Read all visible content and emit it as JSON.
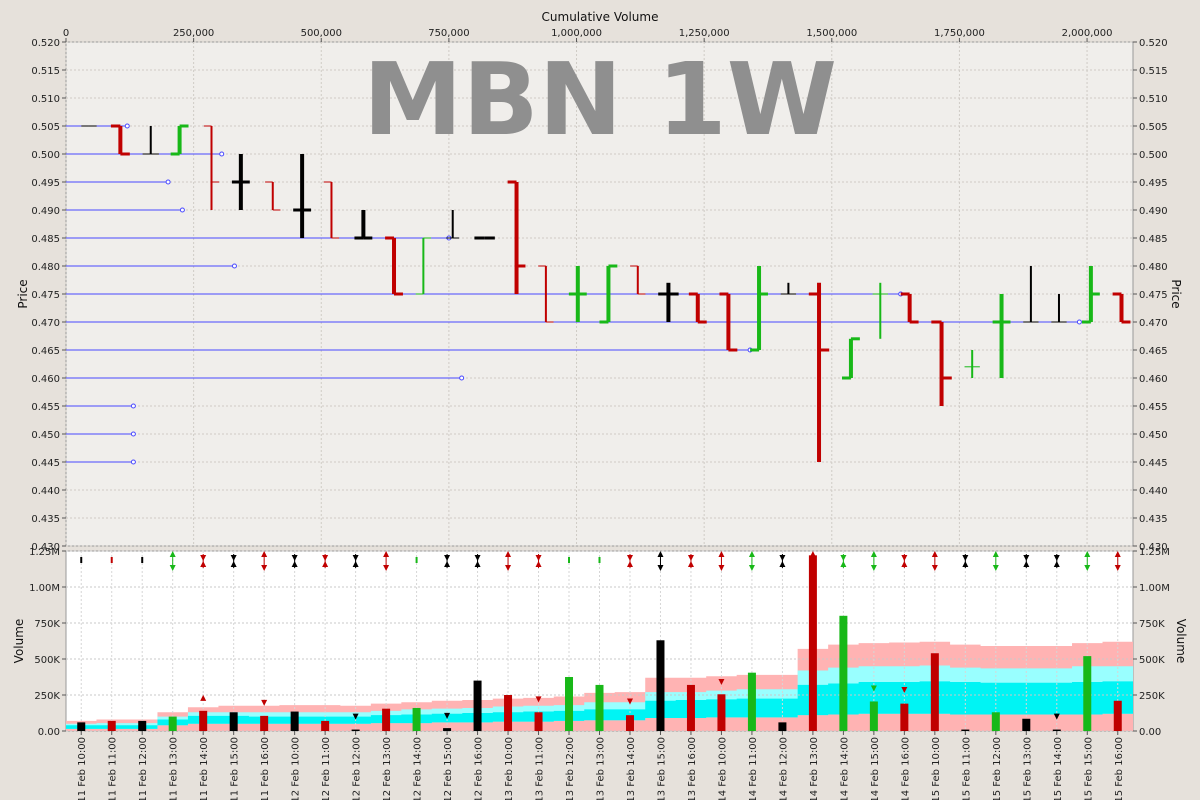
{
  "chart_data": [
    {
      "type": "ohlc",
      "watermark": "MBN 1W",
      "xlabel": "Cumulative Volume",
      "ylabel": "Price",
      "xlim": [
        0,
        2090000
      ],
      "ylim": [
        0.43,
        0.52
      ],
      "x_ticks": [
        {
          "v": 0,
          "label": "0"
        },
        {
          "v": 250000,
          "label": "250,000"
        },
        {
          "v": 500000,
          "label": "500,000"
        },
        {
          "v": 750000,
          "label": "750,000"
        },
        {
          "v": 1000000,
          "label": "1,000,000"
        },
        {
          "v": 1250000,
          "label": "1,250,000"
        },
        {
          "v": 1500000,
          "label": "1,500,000"
        },
        {
          "v": 1750000,
          "label": "1,750,000"
        },
        {
          "v": 2000000,
          "label": "2,000,000"
        }
      ],
      "y_ticks": [
        {
          "v": 0.52,
          "label": "0.520"
        },
        {
          "v": 0.515,
          "label": "0.515"
        },
        {
          "v": 0.51,
          "label": "0.510"
        },
        {
          "v": 0.505,
          "label": "0.505"
        },
        {
          "v": 0.5,
          "label": "0.500"
        },
        {
          "v": 0.495,
          "label": "0.495"
        },
        {
          "v": 0.49,
          "label": "0.490"
        },
        {
          "v": 0.485,
          "label": "0.485"
        },
        {
          "v": 0.48,
          "label": "0.480"
        },
        {
          "v": 0.475,
          "label": "0.475"
        },
        {
          "v": 0.47,
          "label": "0.470"
        },
        {
          "v": 0.465,
          "label": "0.465"
        },
        {
          "v": 0.46,
          "label": "0.460"
        },
        {
          "v": 0.455,
          "label": "0.455"
        },
        {
          "v": 0.45,
          "label": "0.450"
        },
        {
          "v": 0.445,
          "label": "0.445"
        },
        {
          "v": 0.44,
          "label": "0.440"
        },
        {
          "v": 0.435,
          "label": "0.435"
        },
        {
          "v": 0.43,
          "label": "0.430"
        }
      ],
      "colors": {
        "up": "#18b818",
        "down": "#c00000",
        "flat": "#000000",
        "level": "#4848ff"
      },
      "levels": [
        {
          "price": 0.505,
          "end": 120000
        },
        {
          "price": 0.5,
          "end": 305000
        },
        {
          "price": 0.495,
          "end": 200000
        },
        {
          "price": 0.49,
          "end": 228000
        },
        {
          "price": 0.485,
          "end": 750000
        },
        {
          "price": 0.48,
          "end": 330000
        },
        {
          "price": 0.475,
          "end": 1635000
        },
        {
          "price": 0.47,
          "end": 1985000
        },
        {
          "price": 0.465,
          "end": 1340000
        },
        {
          "price": 0.46,
          "end": 775000
        },
        {
          "price": 0.455,
          "end": 132000
        },
        {
          "price": 0.45,
          "end": 132000
        },
        {
          "price": 0.445,
          "end": 132000
        }
      ],
      "bars": [
        {
          "x0": 30000,
          "x1": 60000,
          "o": 0.505,
          "h": 0.505,
          "l": 0.505,
          "c": 0.505,
          "d": "flat"
        },
        {
          "x0": 88000,
          "x1": 125000,
          "o": 0.505,
          "h": 0.505,
          "l": 0.5,
          "c": 0.5,
          "d": "down"
        },
        {
          "x0": 150000,
          "x1": 182000,
          "o": 0.5,
          "h": 0.505,
          "l": 0.5,
          "c": 0.5,
          "d": "flat"
        },
        {
          "x0": 205000,
          "x1": 240000,
          "o": 0.5,
          "h": 0.505,
          "l": 0.5,
          "c": 0.505,
          "d": "up"
        },
        {
          "x0": 270000,
          "x1": 300000,
          "o": 0.505,
          "h": 0.505,
          "l": 0.49,
          "c": 0.495,
          "d": "down"
        },
        {
          "x0": 325000,
          "x1": 360000,
          "o": 0.495,
          "h": 0.5,
          "l": 0.49,
          "c": 0.495,
          "d": "flat"
        },
        {
          "x0": 390000,
          "x1": 420000,
          "o": 0.495,
          "h": 0.495,
          "l": 0.49,
          "c": 0.49,
          "d": "down"
        },
        {
          "x0": 445000,
          "x1": 480000,
          "o": 0.49,
          "h": 0.5,
          "l": 0.485,
          "c": 0.49,
          "d": "flat"
        },
        {
          "x0": 505000,
          "x1": 535000,
          "o": 0.495,
          "h": 0.495,
          "l": 0.485,
          "c": 0.485,
          "d": "down"
        },
        {
          "x0": 565000,
          "x1": 600000,
          "o": 0.485,
          "h": 0.49,
          "l": 0.485,
          "c": 0.485,
          "d": "flat"
        },
        {
          "x0": 625000,
          "x1": 660000,
          "o": 0.485,
          "h": 0.485,
          "l": 0.475,
          "c": 0.475,
          "d": "down"
        },
        {
          "x0": 685000,
          "x1": 715000,
          "o": 0.475,
          "h": 0.485,
          "l": 0.475,
          "c": 0.485,
          "d": "up"
        },
        {
          "x0": 745000,
          "x1": 770000,
          "o": 0.485,
          "h": 0.49,
          "l": 0.485,
          "c": 0.485,
          "d": "flat"
        },
        {
          "x0": 800000,
          "x1": 840000,
          "o": 0.485,
          "h": 0.485,
          "l": 0.485,
          "c": 0.485,
          "d": "flat"
        },
        {
          "x0": 865000,
          "x1": 900000,
          "o": 0.495,
          "h": 0.495,
          "l": 0.475,
          "c": 0.48,
          "d": "down"
        },
        {
          "x0": 925000,
          "x1": 955000,
          "o": 0.48,
          "h": 0.48,
          "l": 0.47,
          "c": 0.47,
          "d": "down"
        },
        {
          "x0": 985000,
          "x1": 1020000,
          "o": 0.475,
          "h": 0.48,
          "l": 0.47,
          "c": 0.475,
          "d": "up"
        },
        {
          "x0": 1045000,
          "x1": 1080000,
          "o": 0.47,
          "h": 0.48,
          "l": 0.47,
          "c": 0.48,
          "d": "up"
        },
        {
          "x0": 1105000,
          "x1": 1135000,
          "o": 0.48,
          "h": 0.48,
          "l": 0.475,
          "c": 0.475,
          "d": "down"
        },
        {
          "x0": 1160000,
          "x1": 1200000,
          "o": 0.475,
          "h": 0.477,
          "l": 0.47,
          "c": 0.475,
          "d": "flat"
        },
        {
          "x0": 1220000,
          "x1": 1255000,
          "o": 0.475,
          "h": 0.475,
          "l": 0.47,
          "c": 0.47,
          "d": "down"
        },
        {
          "x0": 1280000,
          "x1": 1315000,
          "o": 0.475,
          "h": 0.475,
          "l": 0.465,
          "c": 0.465,
          "d": "down"
        },
        {
          "x0": 1340000,
          "x1": 1375000,
          "o": 0.465,
          "h": 0.48,
          "l": 0.465,
          "c": 0.475,
          "d": "up"
        },
        {
          "x0": 1400000,
          "x1": 1430000,
          "o": 0.475,
          "h": 0.477,
          "l": 0.475,
          "c": 0.475,
          "d": "flat"
        },
        {
          "x0": 1455000,
          "x1": 1495000,
          "o": 0.475,
          "h": 0.477,
          "l": 0.445,
          "c": 0.465,
          "d": "down"
        },
        {
          "x0": 1520000,
          "x1": 1555000,
          "o": 0.46,
          "h": 0.467,
          "l": 0.46,
          "c": 0.467,
          "d": "up"
        },
        {
          "x0": 1580000,
          "x1": 1610000,
          "o": 0.475,
          "h": 0.477,
          "l": 0.467,
          "c": 0.475,
          "d": "up"
        },
        {
          "x0": 1635000,
          "x1": 1670000,
          "o": 0.475,
          "h": 0.475,
          "l": 0.47,
          "c": 0.47,
          "d": "down"
        },
        {
          "x0": 1695000,
          "x1": 1735000,
          "o": 0.47,
          "h": 0.47,
          "l": 0.455,
          "c": 0.46,
          "d": "down"
        },
        {
          "x0": 1760000,
          "x1": 1790000,
          "o": 0.462,
          "h": 0.465,
          "l": 0.46,
          "c": 0.462,
          "d": "up"
        },
        {
          "x0": 1815000,
          "x1": 1850000,
          "o": 0.47,
          "h": 0.475,
          "l": 0.46,
          "c": 0.47,
          "d": "up"
        },
        {
          "x0": 1875000,
          "x1": 1905000,
          "o": 0.47,
          "h": 0.48,
          "l": 0.47,
          "c": 0.47,
          "d": "flat"
        },
        {
          "x0": 1930000,
          "x1": 1960000,
          "o": 0.47,
          "h": 0.475,
          "l": 0.47,
          "c": 0.47,
          "d": "flat"
        },
        {
          "x0": 1990000,
          "x1": 2025000,
          "o": 0.47,
          "h": 0.48,
          "l": 0.47,
          "c": 0.475,
          "d": "up"
        },
        {
          "x0": 2050000,
          "x1": 2085000,
          "o": 0.475,
          "h": 0.475,
          "l": 0.47,
          "c": 0.47,
          "d": "down"
        }
      ]
    },
    {
      "type": "bar",
      "ylabel": "Volume",
      "ylim": [
        0,
        1250000
      ],
      "y_ticks": [
        {
          "v": 0,
          "label": "0.00"
        },
        {
          "v": 250000,
          "label": "250K"
        },
        {
          "v": 500000,
          "label": "500K"
        },
        {
          "v": 750000,
          "label": "750K"
        },
        {
          "v": 1000000,
          "label": "1.00M"
        },
        {
          "v": 1250000,
          "label": "1.25M"
        }
      ],
      "categories": [
        "11 Feb 10:00",
        "11 Feb 11:00",
        "11 Feb 12:00",
        "11 Feb 13:00",
        "11 Feb 14:00",
        "11 Feb 15:00",
        "11 Feb 16:00",
        "12 Feb 10:00",
        "12 Feb 11:00",
        "12 Feb 12:00",
        "12 Feb 13:00",
        "12 Feb 14:00",
        "12 Feb 15:00",
        "12 Feb 16:00",
        "13 Feb 10:00",
        "13 Feb 11:00",
        "13 Feb 12:00",
        "13 Feb 13:00",
        "13 Feb 14:00",
        "13 Feb 15:00",
        "13 Feb 16:00",
        "14 Feb 10:00",
        "14 Feb 11:00",
        "14 Feb 12:00",
        "14 Feb 13:00",
        "14 Feb 14:00",
        "14 Feb 15:00",
        "14 Feb 16:00",
        "15 Feb 10:00",
        "15 Feb 11:00",
        "15 Feb 12:00",
        "15 Feb 13:00",
        "15 Feb 14:00",
        "15 Feb 15:00",
        "15 Feb 16:00"
      ],
      "values": [
        60000,
        70000,
        70000,
        100000,
        140000,
        130000,
        105000,
        135000,
        70000,
        10000,
        155000,
        160000,
        20000,
        350000,
        250000,
        130000,
        375000,
        320000,
        110000,
        630000,
        320000,
        255000,
        405000,
        60000,
        1220000,
        800000,
        205000,
        190000,
        540000,
        10000,
        130000,
        85000,
        10000,
        520000,
        210000
      ],
      "direction": [
        "flat",
        "down",
        "flat",
        "up",
        "down",
        "flat",
        "down",
        "flat",
        "down",
        "flat",
        "down",
        "up",
        "flat",
        "flat",
        "down",
        "down",
        "up",
        "up",
        "down",
        "flat",
        "down",
        "down",
        "up",
        "flat",
        "down",
        "up",
        "up",
        "down",
        "down",
        "flat",
        "up",
        "flat",
        "flat",
        "up",
        "down"
      ],
      "band_outer": [
        70000,
        80000,
        80000,
        130000,
        165000,
        175000,
        175000,
        180000,
        180000,
        175000,
        190000,
        200000,
        210000,
        215000,
        225000,
        230000,
        240000,
        265000,
        270000,
        370000,
        370000,
        380000,
        390000,
        390000,
        570000,
        600000,
        610000,
        615000,
        620000,
        600000,
        590000,
        590000,
        590000,
        610000,
        620000
      ],
      "band_inner": [
        50000,
        55000,
        55000,
        100000,
        130000,
        130000,
        130000,
        130000,
        130000,
        130000,
        140000,
        150000,
        155000,
        160000,
        170000,
        175000,
        180000,
        200000,
        200000,
        270000,
        270000,
        280000,
        290000,
        290000,
        420000,
        440000,
        450000,
        450000,
        455000,
        440000,
        435000,
        435000,
        435000,
        450000,
        450000
      ],
      "band_core_top": [
        40000,
        40000,
        40000,
        80000,
        105000,
        105000,
        100000,
        100000,
        100000,
        100000,
        110000,
        115000,
        120000,
        125000,
        130000,
        135000,
        140000,
        150000,
        150000,
        210000,
        215000,
        220000,
        225000,
        225000,
        320000,
        330000,
        340000,
        340000,
        345000,
        340000,
        335000,
        335000,
        335000,
        340000,
        345000
      ],
      "band_core_bottom": [
        15000,
        15000,
        15000,
        40000,
        50000,
        50000,
        50000,
        50000,
        50000,
        50000,
        55000,
        55000,
        60000,
        60000,
        65000,
        65000,
        70000,
        75000,
        75000,
        90000,
        90000,
        95000,
        95000,
        95000,
        110000,
        115000,
        120000,
        120000,
        120000,
        115000,
        115000,
        115000,
        115000,
        115000,
        120000
      ],
      "band_colors": {
        "outer": "#ffb3b3",
        "inner": "#99ffff",
        "core": "#00f4f4",
        "background": "#ffffff"
      },
      "markers_top": [
        "flat",
        "flat",
        "flat",
        "up-down",
        "down-up",
        "down-up",
        "up-down",
        "down-up",
        "down-up",
        "down-up",
        "up-down",
        "flat",
        "down-up",
        "down-up",
        "up-down",
        "down-up",
        "flat",
        "flat",
        "down-up",
        "up-down",
        "down-up",
        "up-down",
        "up-down",
        "down-up",
        "up-down",
        "down-up",
        "up-down",
        "down-up",
        "up-down",
        "down-up",
        "up-down",
        "down-up",
        "down-up",
        "up-down",
        "up-down"
      ],
      "inline_markers": [
        {
          "i": 4,
          "dir": "up",
          "value": 230000
        },
        {
          "i": 6,
          "dir": "down",
          "value": 195000
        },
        {
          "i": 9,
          "dir": "down",
          "value": 100000
        },
        {
          "i": 12,
          "dir": "down",
          "value": 105000
        },
        {
          "i": 15,
          "dir": "down",
          "value": 220000
        },
        {
          "i": 18,
          "dir": "down",
          "value": 205000
        },
        {
          "i": 21,
          "dir": "down",
          "value": 340000
        },
        {
          "i": 26,
          "dir": "down",
          "value": 295000
        },
        {
          "i": 27,
          "dir": "down",
          "value": 285000
        },
        {
          "i": 32,
          "dir": "down",
          "value": 100000
        }
      ]
    }
  ]
}
